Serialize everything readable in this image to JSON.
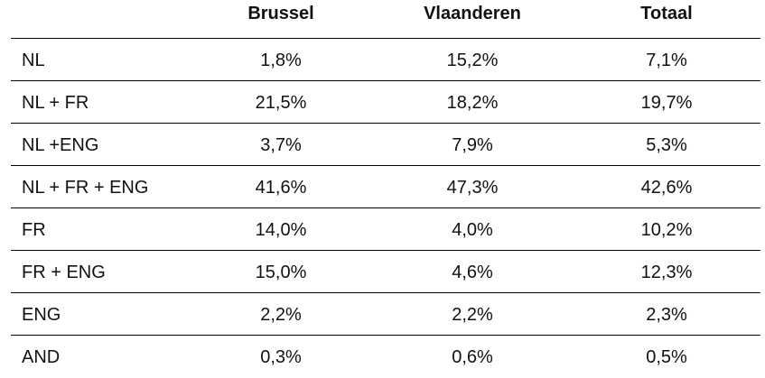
{
  "table": {
    "columns": [
      "Brussel",
      "Vlaanderen",
      "Totaal"
    ],
    "rows": [
      {
        "label": "NL",
        "values": [
          "1,8%",
          "15,2%",
          "7,1%"
        ]
      },
      {
        "label": "NL + FR",
        "values": [
          "21,5%",
          "18,2%",
          "19,7%"
        ]
      },
      {
        "label": "NL +ENG",
        "values": [
          "3,7%",
          "7,9%",
          "5,3%"
        ]
      },
      {
        "label": "NL + FR + ENG",
        "values": [
          "41,6%",
          "47,3%",
          "42,6%"
        ]
      },
      {
        "label": "FR",
        "values": [
          "14,0%",
          "4,0%",
          "10,2%"
        ]
      },
      {
        "label": "FR + ENG",
        "values": [
          "15,0%",
          "4,6%",
          "12,3%"
        ]
      },
      {
        "label": "ENG",
        "values": [
          "2,2%",
          "2,2%",
          "2,3%"
        ]
      },
      {
        "label": "AND",
        "values": [
          "0,3%",
          "0,6%",
          "0,5%"
        ]
      }
    ]
  }
}
